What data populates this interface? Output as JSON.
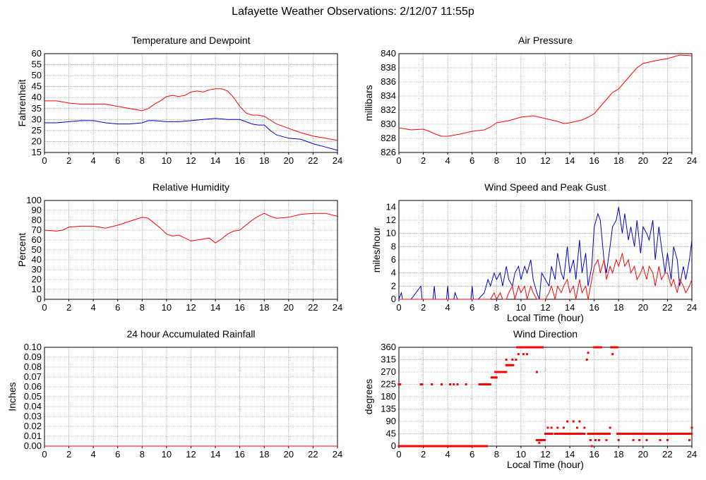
{
  "title": "Lafayette Weather Observations: 2/12/07 11:55p",
  "colors": {
    "red": "#ff0000",
    "blue": "#0000cc",
    "grid": "#808080"
  },
  "chart_data": [
    {
      "id": "temp",
      "type": "line",
      "title": "Temperature and Dewpoint",
      "xlabel": "",
      "ylabel": "Fahrenheit",
      "xlim": [
        0,
        24
      ],
      "ylim": [
        15,
        60
      ],
      "xticks": [
        0,
        2,
        4,
        6,
        8,
        10,
        12,
        14,
        16,
        18,
        20,
        22,
        24
      ],
      "yticks": [
        15,
        20,
        25,
        30,
        35,
        40,
        45,
        50,
        55,
        60
      ],
      "grid": true,
      "series": [
        {
          "color": "#ff0000",
          "style": "line",
          "x": [
            0,
            1,
            2,
            3,
            4,
            5,
            6,
            7,
            8,
            8.5,
            9,
            9.5,
            10,
            10.5,
            11,
            11.5,
            12,
            12.5,
            13,
            13.5,
            14,
            14.5,
            15,
            15.5,
            16,
            16.5,
            17,
            17.5,
            18,
            19,
            20,
            21,
            22,
            23,
            24
          ],
          "y": [
            38.5,
            38.5,
            37.5,
            37,
            37,
            37,
            36,
            35,
            34,
            35,
            37,
            38.5,
            40.5,
            41,
            40.5,
            41,
            42.5,
            43,
            42.5,
            43.5,
            44,
            44,
            43,
            40,
            36,
            33,
            32,
            32,
            31.5,
            28,
            26,
            24,
            22.5,
            21.5,
            20.5
          ]
        },
        {
          "color": "#0000cc",
          "style": "line",
          "x": [
            0,
            1,
            2,
            3,
            4,
            5,
            6,
            7,
            8,
            8.5,
            9,
            10,
            11,
            12,
            13,
            14,
            15,
            16,
            16.5,
            17,
            17.5,
            18,
            18.5,
            19,
            20,
            21,
            22,
            23,
            24
          ],
          "y": [
            28.5,
            28.5,
            29,
            29.5,
            29.5,
            28.5,
            28,
            28,
            28.5,
            29.5,
            29.5,
            29,
            29,
            29.5,
            30,
            30.5,
            30,
            30,
            29,
            28,
            27.5,
            27.5,
            25,
            23,
            21.5,
            21,
            19,
            17.5,
            16
          ]
        }
      ]
    },
    {
      "id": "pressure",
      "type": "line",
      "title": "Air Pressure",
      "xlabel": "",
      "ylabel": "millibars",
      "xlim": [
        0,
        24
      ],
      "ylim": [
        826,
        840
      ],
      "xticks": [
        0,
        2,
        4,
        6,
        8,
        10,
        12,
        14,
        16,
        18,
        20,
        22,
        24
      ],
      "yticks": [
        826,
        828,
        830,
        832,
        834,
        836,
        838,
        840
      ],
      "grid": true,
      "series": [
        {
          "color": "#ff0000",
          "style": "line",
          "x": [
            0,
            1,
            2,
            2.5,
            3,
            3.5,
            4,
            5,
            6,
            7,
            7.5,
            8,
            9,
            10,
            11,
            11.5,
            12,
            13,
            13.5,
            14,
            15,
            15.5,
            16,
            16.5,
            17,
            17.5,
            18,
            18.5,
            19,
            19.5,
            20,
            21,
            22,
            23,
            24
          ],
          "y": [
            829.5,
            829.2,
            829.3,
            829,
            828.6,
            828.3,
            828.3,
            828.6,
            829,
            829.2,
            829.6,
            830.2,
            830.5,
            831,
            831.2,
            831,
            830.8,
            830.4,
            830.1,
            830.2,
            830.6,
            831,
            831.5,
            832.5,
            833.5,
            834.5,
            835,
            836,
            837,
            838,
            838.6,
            839,
            839.3,
            839.8,
            839.7
          ]
        }
      ]
    },
    {
      "id": "humidity",
      "type": "line",
      "title": "Relative Humidity",
      "xlabel": "",
      "ylabel": "Percent",
      "xlim": [
        0,
        24
      ],
      "ylim": [
        0,
        100
      ],
      "xticks": [
        0,
        2,
        4,
        6,
        8,
        10,
        12,
        14,
        16,
        18,
        20,
        22,
        24
      ],
      "yticks": [
        0,
        10,
        20,
        30,
        40,
        50,
        60,
        70,
        80,
        90,
        100
      ],
      "grid": true,
      "series": [
        {
          "color": "#ff0000",
          "style": "line",
          "x": [
            0,
            1,
            1.5,
            2,
            3,
            4,
            5,
            6,
            7,
            7.5,
            8,
            8.5,
            9,
            9.5,
            10,
            10.5,
            11,
            11.5,
            12,
            12.5,
            13,
            13.5,
            14,
            14.5,
            15,
            15.5,
            16,
            16.5,
            17,
            17.5,
            18,
            18.5,
            19,
            20,
            21,
            22,
            23,
            24
          ],
          "y": [
            70,
            69,
            70,
            73,
            74,
            74,
            72,
            75,
            79,
            81,
            83,
            82,
            77,
            72,
            66,
            64,
            65,
            62,
            59,
            60,
            61,
            62,
            57,
            61,
            66,
            69,
            70,
            75,
            80,
            84,
            87,
            84,
            82,
            83,
            86,
            87,
            87,
            84
          ]
        }
      ]
    },
    {
      "id": "wind",
      "type": "line",
      "title": "Wind Speed and Peak Gust",
      "xlabel": "Local Time (hour)",
      "ylabel": "miles/hour",
      "xlim": [
        0,
        24
      ],
      "ylim": [
        0,
        15
      ],
      "xticks": [
        0,
        2,
        4,
        6,
        8,
        10,
        12,
        14,
        16,
        18,
        20,
        22,
        24
      ],
      "yticks": [
        0,
        2,
        4,
        6,
        8,
        10,
        12,
        14
      ],
      "grid": true,
      "series": [
        {
          "color": "#0000cc",
          "style": "line",
          "x": [
            0,
            0.2,
            0.3,
            0.5,
            1,
            1.8,
            1.9,
            2,
            2.8,
            2.9,
            3,
            3.9,
            4,
            4.1,
            4.5,
            4.6,
            4.8,
            5.9,
            6,
            6.1,
            6.5,
            7,
            7.3,
            7.5,
            7.8,
            8,
            8.3,
            8.5,
            8.8,
            9,
            9.3,
            9.5,
            9.8,
            10,
            10.3,
            10.5,
            10.8,
            11,
            11.3,
            11.5,
            11.7,
            12,
            12.3,
            12.5,
            12.8,
            13,
            13.3,
            13.5,
            13.8,
            14,
            14.3,
            14.5,
            14.8,
            15,
            15.3,
            15.5,
            15.8,
            16,
            16.3,
            16.5,
            16.8,
            17,
            17.3,
            17.5,
            17.8,
            18,
            18.3,
            18.5,
            18.8,
            19,
            19.3,
            19.5,
            19.8,
            20,
            20.3,
            20.5,
            20.8,
            21,
            21.3,
            21.5,
            21.8,
            22,
            22.3,
            22.5,
            22.8,
            23,
            23.3,
            23.5,
            23.8,
            24
          ],
          "y": [
            0,
            1,
            0,
            0,
            0,
            2,
            0,
            0,
            0,
            2,
            0,
            0,
            2,
            0,
            0,
            1,
            0,
            0,
            2,
            0,
            0,
            1,
            3,
            2,
            4,
            3,
            4,
            2,
            5,
            3,
            2,
            4,
            5,
            3,
            5,
            4,
            6,
            3,
            1,
            0,
            4,
            3,
            2,
            5,
            3,
            7,
            4,
            3,
            8,
            4,
            6,
            3,
            9,
            4,
            7,
            2,
            5,
            11,
            13,
            12,
            6,
            4,
            8,
            11,
            12,
            14,
            10,
            13,
            9,
            11,
            8,
            12,
            7,
            11,
            10,
            9,
            12,
            6,
            11,
            8,
            4,
            7,
            3,
            8,
            6,
            2,
            5,
            3,
            6,
            9
          ]
        },
        {
          "color": "#ff0000",
          "style": "line",
          "x": [
            0,
            7.5,
            7.8,
            8,
            8.3,
            8.5,
            8.8,
            9,
            9.3,
            9.5,
            9.8,
            10,
            10.3,
            10.5,
            10.8,
            11,
            11.3,
            11.5,
            12,
            12.3,
            12.5,
            12.8,
            13,
            13.3,
            13.5,
            13.8,
            14,
            14.3,
            14.5,
            14.8,
            15,
            15.3,
            15.5,
            15.8,
            16,
            16.3,
            16.5,
            16.8,
            17,
            17.3,
            17.5,
            17.8,
            18,
            18.3,
            18.5,
            18.8,
            19,
            19.3,
            19.5,
            19.8,
            20,
            20.3,
            20.5,
            20.8,
            21,
            21.3,
            21.5,
            21.8,
            22,
            22.3,
            22.5,
            22.8,
            23,
            23.3,
            23.5,
            23.8,
            24
          ],
          "y": [
            0,
            0,
            1,
            0,
            1,
            0,
            0,
            1,
            2,
            0,
            2,
            1,
            2,
            0,
            2,
            1,
            0,
            0,
            0,
            1,
            2,
            0,
            2,
            1,
            2,
            3,
            1,
            2,
            0,
            3,
            1,
            2,
            0,
            3,
            5,
            6,
            4,
            6,
            3,
            5,
            4,
            6,
            5,
            7,
            5,
            6,
            4,
            5,
            3,
            4,
            5,
            3,
            5,
            4,
            2,
            5,
            3,
            4,
            4,
            2,
            3,
            1,
            3,
            2,
            1,
            2,
            3
          ]
        }
      ]
    },
    {
      "id": "rain",
      "type": "line",
      "title": "24 hour Accumulated Rainfall",
      "xlabel": "",
      "ylabel": "Inches",
      "xlim": [
        0,
        24
      ],
      "ylim": [
        0,
        0.1
      ],
      "xticks": [
        0,
        2,
        4,
        6,
        8,
        10,
        12,
        14,
        16,
        18,
        20,
        22,
        24
      ],
      "yticks": [
        "0.00",
        "0.01",
        "0.02",
        "0.03",
        "0.04",
        "0.05",
        "0.06",
        "0.07",
        "0.08",
        "0.09",
        "0.10"
      ],
      "grid": true,
      "series": [
        {
          "color": "#ff0000",
          "style": "line",
          "x": [
            0,
            24
          ],
          "y": [
            0,
            0
          ]
        }
      ]
    },
    {
      "id": "direction",
      "type": "scatter",
      "title": "Wind Direction",
      "xlabel": "Local Time (hour)",
      "ylabel": "degrees",
      "xlim": [
        0,
        24
      ],
      "ylim": [
        0,
        360
      ],
      "xticks": [
        0,
        2,
        4,
        6,
        8,
        10,
        12,
        14,
        16,
        18,
        20,
        22,
        24
      ],
      "yticks": [
        0,
        45,
        90,
        135,
        180,
        225,
        270,
        315,
        360
      ],
      "grid": true,
      "series": [
        {
          "color": "#ff0000",
          "style": "dots",
          "segments": [
            {
              "from": 0,
              "to": 7.2,
              "step": 0.08,
              "y": 0
            },
            {
              "from": 6.6,
              "to": 7.5,
              "step": 0.08,
              "y": 225
            },
            {
              "from": 7.6,
              "to": 8.0,
              "step": 0.08,
              "y": 250
            },
            {
              "from": 7.9,
              "to": 8.8,
              "step": 0.08,
              "y": 270
            },
            {
              "from": 8.8,
              "to": 9.4,
              "step": 0.08,
              "y": 295
            },
            {
              "from": 9.7,
              "to": 11.8,
              "step": 0.08,
              "y": 360
            },
            {
              "from": 11.3,
              "to": 12.0,
              "step": 0.08,
              "y": 22
            },
            {
              "from": 12.0,
              "to": 12.6,
              "step": 0.08,
              "y": 45
            },
            {
              "from": 12.8,
              "to": 15.2,
              "step": 0.08,
              "y": 45
            },
            {
              "from": 15.5,
              "to": 17.3,
              "step": 0.08,
              "y": 45
            },
            {
              "from": 16.0,
              "to": 16.6,
              "step": 0.08,
              "y": 360
            },
            {
              "from": 17.4,
              "to": 17.9,
              "step": 0.08,
              "y": 360
            },
            {
              "from": 17.9,
              "to": 24.0,
              "step": 0.08,
              "y": 45
            }
          ],
          "points": [
            [
              0.0,
              225
            ],
            [
              0.1,
              225
            ],
            [
              1.8,
              225
            ],
            [
              1.9,
              225
            ],
            [
              2.7,
              225
            ],
            [
              3.5,
              225
            ],
            [
              4.2,
              225
            ],
            [
              4.5,
              225
            ],
            [
              4.8,
              225
            ],
            [
              5.5,
              225
            ],
            [
              8.8,
              315
            ],
            [
              9.3,
              315
            ],
            [
              9.6,
              315
            ],
            [
              9.8,
              335
            ],
            [
              10.2,
              335
            ],
            [
              10.5,
              335
            ],
            [
              11.3,
              270
            ],
            [
              11.5,
              12
            ],
            [
              12.2,
              67
            ],
            [
              12.5,
              67
            ],
            [
              13.0,
              67
            ],
            [
              13.5,
              67
            ],
            [
              13.8,
              90
            ],
            [
              14.3,
              90
            ],
            [
              14.6,
              67
            ],
            [
              14.8,
              90
            ],
            [
              15.2,
              67
            ],
            [
              15.4,
              315
            ],
            [
              15.5,
              340
            ],
            [
              15.7,
              22
            ],
            [
              15.8,
              0
            ],
            [
              16.1,
              22
            ],
            [
              16.4,
              22
            ],
            [
              17.0,
              22
            ],
            [
              17.3,
              67
            ],
            [
              17.5,
              335
            ],
            [
              18.0,
              22
            ],
            [
              19.2,
              22
            ],
            [
              19.7,
              22
            ],
            [
              20.3,
              22
            ],
            [
              21.4,
              22
            ],
            [
              22.0,
              22
            ],
            [
              23.8,
              22
            ],
            [
              24.0,
              67
            ]
          ]
        }
      ]
    }
  ]
}
